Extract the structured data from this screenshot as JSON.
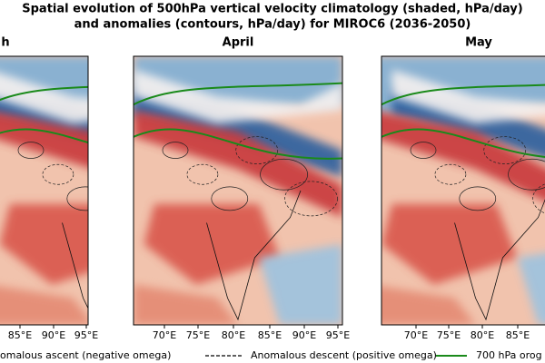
{
  "title": {
    "line1": "Spatial evolution of 500hPa vertical velocity climatology (shaded, hPa/day)",
    "line2": "and anomalies (contours, hPa/day) for MIROC6 (2036-2050)"
  },
  "panels": [
    {
      "title": "h",
      "xticks": [
        "85°E",
        "90°E",
        "95°E"
      ]
    },
    {
      "title": "April",
      "xticks": [
        "70°E",
        "75°E",
        "80°E",
        "85°E",
        "90°E",
        "95°E"
      ]
    },
    {
      "title": "May",
      "xticks": [
        "70°E",
        "75°E",
        "80°E",
        "85°E"
      ]
    }
  ],
  "legend": [
    "omalous ascent (negative omega)",
    "Anomalous descent (positive omega)",
    "700 hPa orog"
  ]
}
